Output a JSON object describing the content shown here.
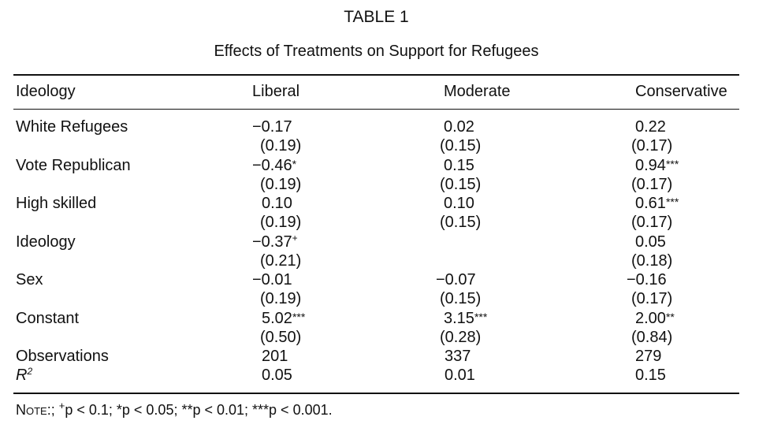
{
  "table": {
    "title": "TABLE 1",
    "subtitle": "Effects of Treatments on Support for Refugees",
    "header": {
      "label": "Ideology",
      "liberal": "Liberal",
      "moderate": "Moderate",
      "conservative": "Conservative"
    },
    "rows": [
      {
        "label": "White Refugees",
        "liberal": {
          "coef": "−0.17",
          "stars": "",
          "se": "(0.19)"
        },
        "moderate": {
          "coef": "0.02",
          "stars": "",
          "se": "(0.15)"
        },
        "conservative": {
          "coef": "0.22",
          "stars": "",
          "se": "(0.17)"
        }
      },
      {
        "label": "Vote Republican",
        "liberal": {
          "coef": "−0.46",
          "stars": "*",
          "se": "(0.19)"
        },
        "moderate": {
          "coef": "0.15",
          "stars": "",
          "se": "(0.15)"
        },
        "conservative": {
          "coef": "0.94",
          "stars": "***",
          "se": "(0.17)"
        }
      },
      {
        "label": "High skilled",
        "liberal": {
          "coef": "0.10",
          "stars": "",
          "se": "(0.19)"
        },
        "moderate": {
          "coef": "0.10",
          "stars": "",
          "se": "(0.15)"
        },
        "conservative": {
          "coef": "0.61",
          "stars": "***",
          "se": "(0.17)"
        }
      },
      {
        "label": "Ideology",
        "liberal": {
          "coef": "−0.37",
          "stars": "+",
          "se": "(0.21)"
        },
        "moderate": {
          "coef": "",
          "stars": "",
          "se": ""
        },
        "conservative": {
          "coef": "0.05",
          "stars": "",
          "se": "(0.18)"
        }
      },
      {
        "label": "Sex",
        "liberal": {
          "coef": "−0.01",
          "stars": "",
          "se": "(0.19)"
        },
        "moderate": {
          "coef": "−0.07",
          "stars": "",
          "se": "(0.15)"
        },
        "conservative": {
          "coef": "−0.16",
          "stars": "",
          "se": "(0.17)"
        }
      },
      {
        "label": "Constant",
        "liberal": {
          "coef": "5.02",
          "stars": "***",
          "se": "(0.50)"
        },
        "moderate": {
          "coef": "3.15",
          "stars": "***",
          "se": "(0.28)"
        },
        "conservative": {
          "coef": "2.00",
          "stars": "**",
          "se": "(0.84)"
        }
      }
    ],
    "observations": {
      "label": "Observations",
      "liberal": "201",
      "moderate": "337",
      "conservative": "279"
    },
    "r2": {
      "label_main": "R",
      "label_sup": "2",
      "liberal": "0.05",
      "moderate": "0.01",
      "conservative": "0.15"
    },
    "note": {
      "prefix": "Note:;",
      "plus_symbol": "+",
      "items": "p < 0.1;  *p < 0.05;  **p < 0.01;  ***p < 0.001."
    }
  }
}
